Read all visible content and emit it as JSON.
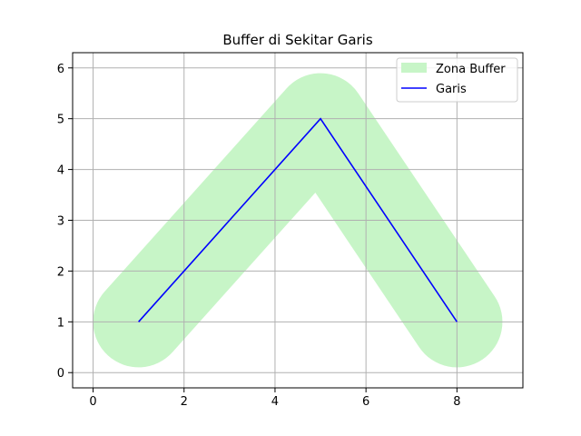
{
  "chart_data": {
    "type": "line",
    "title": "Buffer di Sekitar Garis",
    "xlabel": "",
    "ylabel": "",
    "xlim": [
      -0.45,
      9.45
    ],
    "ylim": [
      -0.3,
      6.3
    ],
    "xticks": [
      0,
      2,
      4,
      6,
      8
    ],
    "yticks": [
      0,
      1,
      2,
      3,
      4,
      5,
      6
    ],
    "grid": true,
    "legend_position": "top-right",
    "series": [
      {
        "name": "Zona Buffer",
        "kind": "area",
        "color": "#c7f5c7",
        "buffer_distance": 1,
        "x": [
          1,
          5,
          8
        ],
        "y": [
          1,
          5,
          1
        ]
      },
      {
        "name": "Garis",
        "kind": "line",
        "color": "#0000ff",
        "x": [
          1,
          5,
          8
        ],
        "y": [
          1,
          5,
          1
        ]
      }
    ]
  }
}
